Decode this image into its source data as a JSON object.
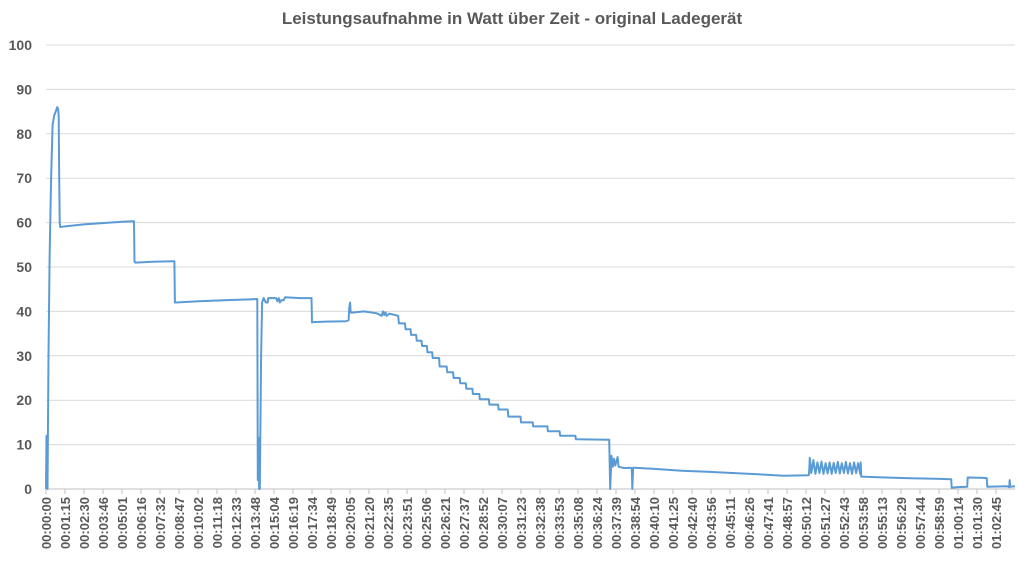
{
  "chart_data": {
    "type": "line",
    "title": "Leistungsaufnahme in Watt über Zeit - original Ladegerät",
    "xlabel": "",
    "ylabel": "",
    "ylim": [
      0,
      100
    ],
    "yticks": [
      0,
      10,
      20,
      30,
      40,
      50,
      60,
      70,
      80,
      90,
      100
    ],
    "xlim": [
      0,
      3811
    ],
    "grid": true,
    "legend": "none",
    "x_tick_labels": [
      "00:00:00",
      "00:01:15",
      "00:02:30",
      "00:03:46",
      "00:05:01",
      "00:06:16",
      "00:07:32",
      "00:08:47",
      "00:10:02",
      "00:11:18",
      "00:12:33",
      "00:13:48",
      "00:15:04",
      "00:16:19",
      "00:17:34",
      "00:18:49",
      "00:20:05",
      "00:21:20",
      "00:22:35",
      "00:23:51",
      "00:25:06",
      "00:26:21",
      "00:27:37",
      "00:28:52",
      "00:30:07",
      "00:31:23",
      "00:32:38",
      "00:33:53",
      "00:35:08",
      "00:36:24",
      "00:37:39",
      "00:38:54",
      "00:40:10",
      "00:41:25",
      "00:42:40",
      "00:43:56",
      "00:45:11",
      "00:46:26",
      "00:47:41",
      "00:48:57",
      "00:50:12",
      "00:51:27",
      "00:52:43",
      "00:53:58",
      "00:55:13",
      "00:56:29",
      "00:57:44",
      "00:58:59",
      "01:00:14",
      "01:01:30",
      "01:02:45"
    ],
    "series": [
      {
        "color": "#5b9bd5",
        "points": [
          [
            0,
            0
          ],
          [
            2,
            12
          ],
          [
            4,
            2
          ],
          [
            6,
            0
          ],
          [
            10,
            30
          ],
          [
            14,
            52
          ],
          [
            20,
            70
          ],
          [
            26,
            82
          ],
          [
            32,
            84
          ],
          [
            38,
            85
          ],
          [
            44,
            86
          ],
          [
            48,
            85.5
          ],
          [
            50,
            84
          ],
          [
            52,
            70
          ],
          [
            54,
            60
          ],
          [
            56,
            59
          ],
          [
            80,
            59.2
          ],
          [
            150,
            59.6
          ],
          [
            250,
            60
          ],
          [
            300,
            60.2
          ],
          [
            340,
            60.3
          ],
          [
            346,
            60.3
          ],
          [
            348,
            51.2
          ],
          [
            352,
            51
          ],
          [
            420,
            51.2
          ],
          [
            500,
            51.3
          ],
          [
            505,
            51.3
          ],
          [
            507,
            42
          ],
          [
            511,
            42
          ],
          [
            600,
            42.3
          ],
          [
            700,
            42.5
          ],
          [
            800,
            42.7
          ],
          [
            831,
            42.8
          ],
          [
            833,
            2
          ],
          [
            836,
            11.5
          ],
          [
            838,
            0
          ],
          [
            841,
            0
          ],
          [
            846,
            30
          ],
          [
            850,
            42
          ],
          [
            856,
            43
          ],
          [
            865,
            42
          ],
          [
            872,
            42
          ],
          [
            874,
            43
          ],
          [
            905,
            43
          ],
          [
            910,
            42.3
          ],
          [
            915,
            43
          ],
          [
            920,
            42
          ],
          [
            925,
            42.5
          ],
          [
            935,
            42.5
          ],
          [
            940,
            43.2
          ],
          [
            1000,
            43
          ],
          [
            1044,
            43
          ],
          [
            1046,
            37.5
          ],
          [
            1050,
            37.6
          ],
          [
            1100,
            37.7
          ],
          [
            1180,
            37.8
          ],
          [
            1190,
            38
          ],
          [
            1193,
            41
          ],
          [
            1196,
            42
          ],
          [
            1198,
            40
          ],
          [
            1200,
            39.7
          ],
          [
            1250,
            40
          ],
          [
            1300,
            39.6
          ],
          [
            1320,
            39
          ],
          [
            1325,
            40
          ],
          [
            1330,
            39.2
          ],
          [
            1335,
            39.8
          ],
          [
            1340,
            39
          ],
          [
            1350,
            39.5
          ],
          [
            1385,
            39
          ],
          [
            1388,
            37.3
          ],
          [
            1412,
            37.3
          ],
          [
            1414,
            36
          ],
          [
            1434,
            36
          ],
          [
            1436,
            34.7
          ],
          [
            1456,
            34.7
          ],
          [
            1458,
            33.4
          ],
          [
            1477,
            33.4
          ],
          [
            1479,
            32.2
          ],
          [
            1498,
            32.2
          ],
          [
            1500,
            30.8
          ],
          [
            1519,
            30.8
          ],
          [
            1521,
            29.5
          ],
          [
            1546,
            29.5
          ],
          [
            1548,
            27.6
          ],
          [
            1576,
            27.6
          ],
          [
            1578,
            26.3
          ],
          [
            1601,
            26.3
          ],
          [
            1603,
            25
          ],
          [
            1627,
            25
          ],
          [
            1629,
            23.8
          ],
          [
            1651,
            23.8
          ],
          [
            1653,
            22.6
          ],
          [
            1677,
            22.6
          ],
          [
            1679,
            21.4
          ],
          [
            1704,
            21.4
          ],
          [
            1706,
            20.2
          ],
          [
            1742,
            20.2
          ],
          [
            1744,
            19
          ],
          [
            1778,
            19
          ],
          [
            1780,
            17.9
          ],
          [
            1816,
            17.9
          ],
          [
            1818,
            16.3
          ],
          [
            1866,
            16.3
          ],
          [
            1868,
            15
          ],
          [
            1914,
            15
          ],
          [
            1916,
            14.1
          ],
          [
            1972,
            14.1
          ],
          [
            1974,
            13
          ],
          [
            2020,
            13
          ],
          [
            2022,
            12
          ],
          [
            2082,
            12
          ],
          [
            2084,
            11.2
          ],
          [
            2215,
            11.1
          ],
          [
            2219,
            0
          ],
          [
            2224,
            7.5
          ],
          [
            2229,
            5
          ],
          [
            2234,
            6.8
          ],
          [
            2239,
            5.3
          ],
          [
            2248,
            7.2
          ],
          [
            2252,
            5
          ],
          [
            2275,
            4.7
          ],
          [
            2300,
            4.8
          ],
          [
            2304,
            4.6
          ],
          [
            2306,
            0
          ],
          [
            2309,
            4.8
          ],
          [
            2400,
            4.5
          ],
          [
            2500,
            4.1
          ],
          [
            2600,
            3.9
          ],
          [
            2700,
            3.6
          ],
          [
            2800,
            3.3
          ],
          [
            2900,
            3
          ],
          [
            3000,
            3.1
          ],
          [
            3002,
            4.5
          ],
          [
            3004,
            7
          ],
          [
            3010,
            3.6
          ],
          [
            3018,
            6.5
          ],
          [
            3026,
            3.4
          ],
          [
            3034,
            6
          ],
          [
            3042,
            3.6
          ],
          [
            3050,
            6.2
          ],
          [
            3058,
            3.4
          ],
          [
            3066,
            5.8
          ],
          [
            3074,
            3.5
          ],
          [
            3082,
            6
          ],
          [
            3090,
            3.4
          ],
          [
            3098,
            5.9
          ],
          [
            3106,
            3.6
          ],
          [
            3114,
            6.1
          ],
          [
            3122,
            3.5
          ],
          [
            3130,
            5.8
          ],
          [
            3138,
            3.6
          ],
          [
            3146,
            6.1
          ],
          [
            3154,
            3.5
          ],
          [
            3162,
            5.8
          ],
          [
            3170,
            3.4
          ],
          [
            3178,
            6
          ],
          [
            3186,
            3.6
          ],
          [
            3194,
            5.8
          ],
          [
            3202,
            3.4
          ],
          [
            3204,
            6
          ],
          [
            3206,
            2.8
          ],
          [
            3300,
            2.6
          ],
          [
            3400,
            2.4
          ],
          [
            3500,
            2.3
          ],
          [
            3560,
            2.2
          ],
          [
            3562,
            0.3
          ],
          [
            3580,
            0.4
          ],
          [
            3623,
            0.5
          ],
          [
            3625,
            2.6
          ],
          [
            3690,
            2.5
          ],
          [
            3700,
            2.4
          ],
          [
            3702,
            0.5
          ],
          [
            3780,
            0.6
          ],
          [
            3788,
            0.4
          ],
          [
            3790,
            2
          ],
          [
            3792,
            0.5
          ],
          [
            3811,
            0.6
          ]
        ]
      }
    ]
  }
}
